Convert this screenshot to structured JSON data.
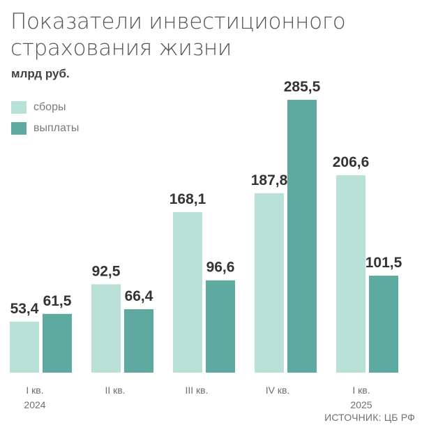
{
  "header": {
    "title_line1": "Показатели инвестиционного",
    "title_line2": "страхования жизни",
    "unit": "млрд руб."
  },
  "source": "ИСТОЧНИК: ЦБ РФ",
  "colors": {
    "sbory": "#b9e1d8",
    "vyplaty": "#5ea9a0"
  },
  "chart_data": {
    "type": "bar",
    "title": "Показатели инвестиционного страхования жизни",
    "ylabel": "млрд руб.",
    "categories": [
      {
        "quarter": "I кв.",
        "year": "2024"
      },
      {
        "quarter": "II кв.",
        "year": ""
      },
      {
        "quarter": "III кв.",
        "year": ""
      },
      {
        "quarter": "IV кв.",
        "year": ""
      },
      {
        "quarter": "I кв.",
        "year": "2025"
      }
    ],
    "series": [
      {
        "name": "сборы",
        "values": [
          53.4,
          92.5,
          168.1,
          187.8,
          206.6
        ],
        "labels": [
          "53,4",
          "92,5",
          "168,1",
          "187,8",
          "206,6"
        ]
      },
      {
        "name": "выплаты",
        "values": [
          61.5,
          66.4,
          96.6,
          285.5,
          101.5
        ],
        "labels": [
          "61,5",
          "66,4",
          "96,6",
          "285,5",
          "101,5"
        ]
      }
    ],
    "ylim": [
      0,
      285.5
    ],
    "legend": "top-left",
    "grid": false
  }
}
